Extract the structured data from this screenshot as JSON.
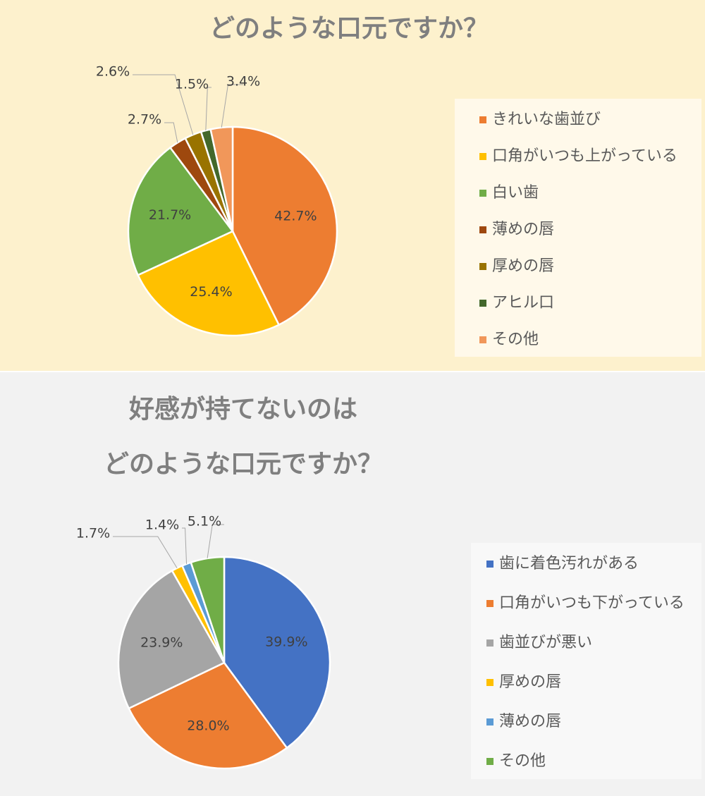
{
  "chart_data": [
    {
      "type": "pie",
      "title": "どのような口元ですか？",
      "categories": [
        "きれいな歯並び",
        "口角がいつも上がっている",
        "白い歯",
        "薄めの唇",
        "厚めの唇",
        "アヒル口",
        "その他"
      ],
      "values": [
        42.7,
        25.4,
        21.7,
        2.7,
        2.6,
        1.5,
        3.4
      ],
      "value_labels": [
        "42.7%",
        "25.4%",
        "21.7%",
        "2.7%",
        "2.6%",
        "1.5%",
        "3.4%"
      ],
      "colors": [
        "#ED7D31",
        "#FFC000",
        "#70AD47",
        "#9E480E",
        "#997300",
        "#43682B",
        "#F1975A"
      ]
    },
    {
      "type": "pie",
      "title": [
        "好感が持てないのは",
        "どのような口元ですか？"
      ],
      "categories": [
        "歯に着色汚れがある",
        "口角がいつも下がっている",
        "歯並びが悪い",
        "厚めの唇",
        "薄めの唇",
        "その他"
      ],
      "values": [
        39.9,
        28.0,
        23.9,
        1.7,
        1.4,
        5.1
      ],
      "value_labels": [
        "39.9%",
        "28.0%",
        "23.9%",
        "1.7%",
        "1.4%",
        "5.1%"
      ],
      "colors": [
        "#4472C4",
        "#ED7D31",
        "#A5A5A5",
        "#FFC000",
        "#5B9BD5",
        "#70AD47"
      ]
    }
  ]
}
